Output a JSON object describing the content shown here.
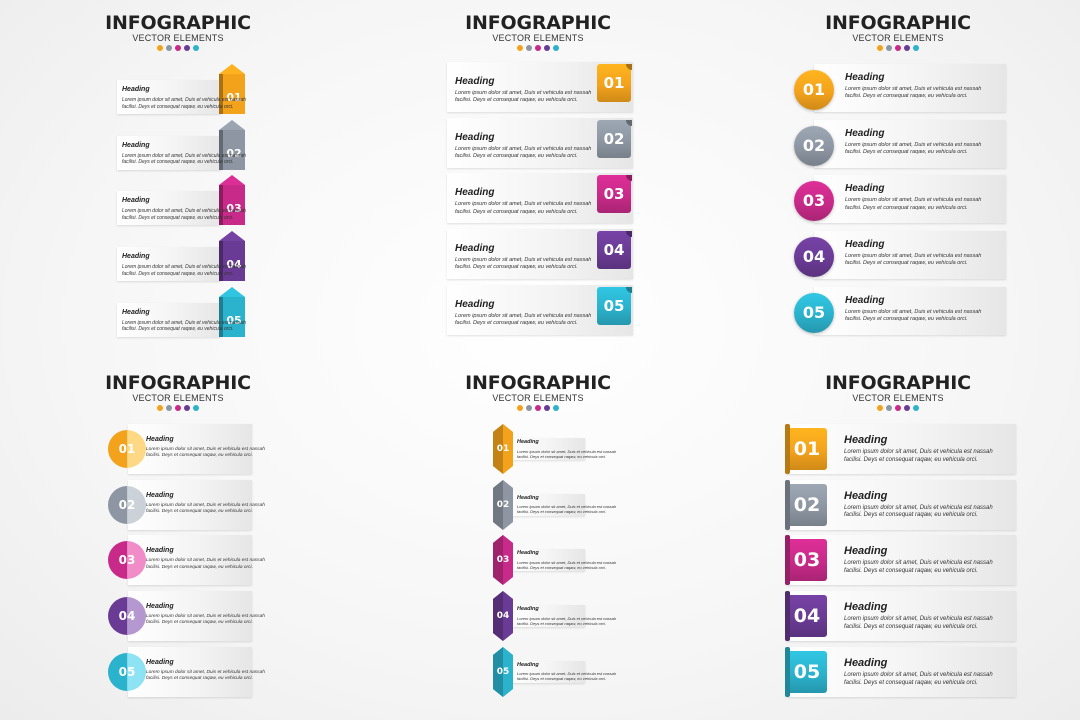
{
  "title": "INFOGRAPHIC",
  "subtitle": "VECTOR ELEMENTS",
  "palette": [
    "#f3a21c",
    "#8d96a2",
    "#c72a88",
    "#6a3b94",
    "#2bb2cc"
  ],
  "steps": [
    {
      "number": "01",
      "heading": "Heading",
      "line1": "Lorem ipsum dolor sit amet, Duis et vehicula est nassah",
      "line2": "facilisi. Deys et consequat raqaw, eu vehicula orci."
    },
    {
      "number": "02",
      "heading": "Heading",
      "line1": "Lorem ipsum dolor sit amet, Duis et vehicula est nassah",
      "line2": "facilisi. Deys et consequat raqaw, eu vehicula orci."
    },
    {
      "number": "03",
      "heading": "Heading",
      "line1": "Lorem ipsum dolor sit amet, Duis et vehicula est nassah",
      "line2": "facilisi. Deys et consequat raqaw, eu vehicula orci."
    },
    {
      "number": "04",
      "heading": "Heading",
      "line1": "Lorem ipsum dolor sit amet, Duis et vehicula est nassah",
      "line2": "facilisi. Deys et consequat raqaw, eu vehicula orci."
    },
    {
      "number": "05",
      "heading": "Heading",
      "line1": "Lorem ipsum dolor sit amet, Duis et vehicula est nassah",
      "line2": "facilisi. Deys et consequat raqaw, eu vehicula orci."
    }
  ]
}
